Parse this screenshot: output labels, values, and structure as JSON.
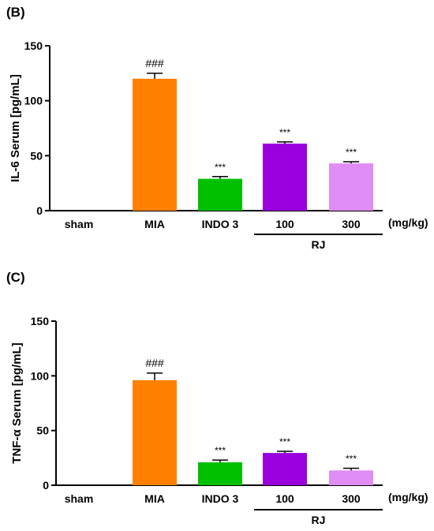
{
  "chart_data": [
    {
      "type": "bar",
      "panel_label": "(B)",
      "ylabel": "IL-6 Serum [pg/mL]",
      "ylim": [
        0,
        150
      ],
      "yticks": [
        "0",
        "50",
        "100",
        "150"
      ],
      "categories": [
        "sham",
        "MIA",
        "INDO 3",
        "100",
        "300"
      ],
      "values": [
        0,
        120,
        29,
        61,
        43
      ],
      "errors": [
        0,
        5,
        2,
        1.5,
        1.5
      ],
      "colors": [
        "#ffffff",
        "#ff8000",
        "#00c000",
        "#9900dd",
        "#e08cf5"
      ],
      "annotations": [
        "",
        "###",
        "***",
        "***",
        "***"
      ],
      "unit_label": "(mg/kg)",
      "group_label": "RJ"
    },
    {
      "type": "bar",
      "panel_label": "(C)",
      "ylabel": "TNF-α Serum [pg/mL]",
      "ylim": [
        0,
        150
      ],
      "yticks": [
        "0",
        "50",
        "100",
        "150"
      ],
      "categories": [
        "sham",
        "MIA",
        "INDO 3",
        "100",
        "300"
      ],
      "values": [
        0,
        96,
        21,
        29.5,
        13.5
      ],
      "errors": [
        0,
        6.5,
        2,
        1.5,
        2
      ],
      "colors": [
        "#ffffff",
        "#ff8000",
        "#00c000",
        "#9900dd",
        "#e08cf5"
      ],
      "annotations": [
        "",
        "###",
        "***",
        "***",
        "***"
      ],
      "unit_label": "(mg/kg)",
      "group_label": "RJ"
    }
  ]
}
